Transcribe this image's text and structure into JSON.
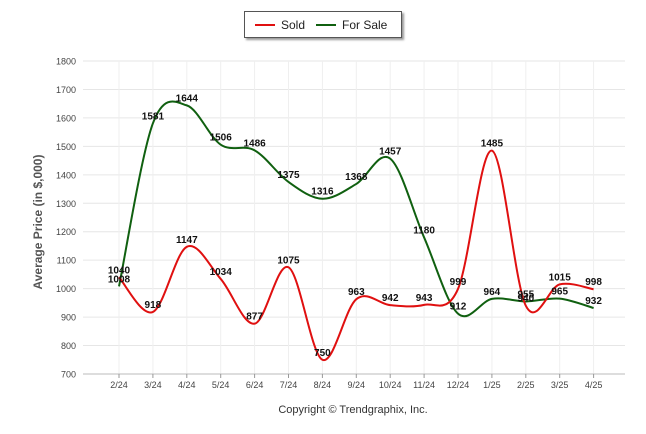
{
  "chart_data": {
    "type": "line",
    "title": "",
    "xlabel": "",
    "ylabel": "Average Price (in $,000)",
    "categories": [
      "2/24",
      "3/24",
      "4/24",
      "5/24",
      "6/24",
      "7/24",
      "8/24",
      "9/24",
      "10/24",
      "11/24",
      "12/24",
      "1/25",
      "2/25",
      "3/25",
      "4/25"
    ],
    "ylim": [
      700,
      1800
    ],
    "yticks": [
      700,
      800,
      900,
      1000,
      1100,
      1200,
      1300,
      1400,
      1500,
      1600,
      1700,
      1800
    ],
    "grid": true,
    "legend_position": "top-center",
    "series": [
      {
        "name": "Sold",
        "color": "#e01010",
        "values": [
          1040,
          918,
          1147,
          1034,
          877,
          1075,
          750,
          963,
          942,
          943,
          999,
          1485,
          940,
          1015,
          998
        ]
      },
      {
        "name": "For Sale",
        "color": "#106010",
        "values": [
          1008,
          1581,
          1644,
          1506,
          1486,
          1375,
          1316,
          1368,
          1457,
          1180,
          912,
          964,
          955,
          965,
          932
        ]
      }
    ],
    "footer": "Copyright © Trendgraphix, Inc."
  }
}
